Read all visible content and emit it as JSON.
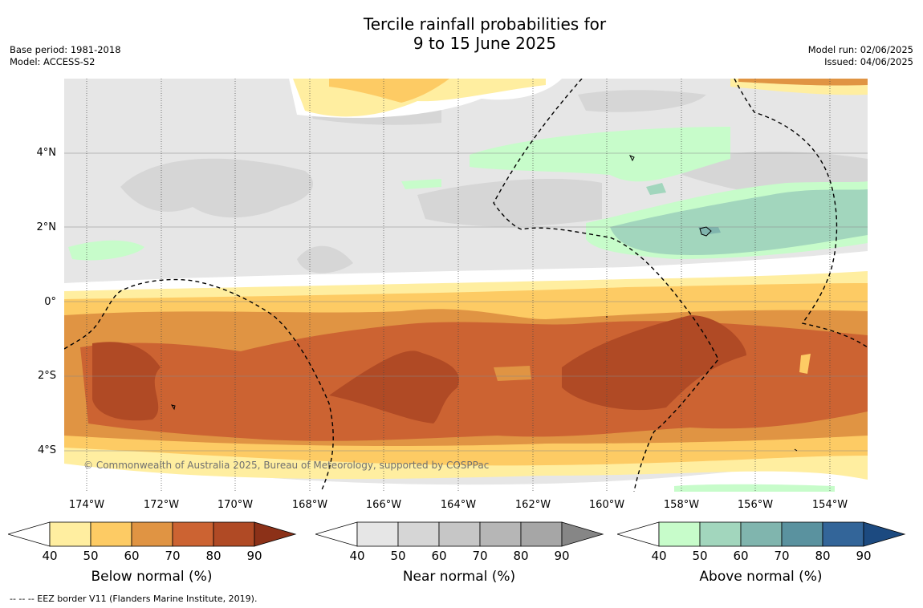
{
  "title": {
    "line1": "Tercile rainfall probabilities for",
    "line2": "9 to 15 June 2025"
  },
  "meta": {
    "base_period": "Base period: 1981-2018",
    "model": "Model: ACCESS-S2",
    "model_run": "Model run: 02/06/2025",
    "issued": "Issued: 04/06/2025"
  },
  "copyright": "© Commonwealth of Australia 2025, Bureau of Meteorology, supported by COSPPac",
  "axes": {
    "lat_labels": [
      "4°N",
      "2°N",
      "0°",
      "2°S",
      "4°S"
    ],
    "lon_labels": [
      "174°W",
      "172°W",
      "170°W",
      "168°W",
      "166°W",
      "164°W",
      "162°W",
      "160°W",
      "158°W",
      "156°W",
      "154°W"
    ]
  },
  "legends": [
    {
      "title": "Below normal (%)",
      "ticks": [
        "40",
        "50",
        "60",
        "70",
        "80",
        "90"
      ],
      "colors": [
        "#ffeea0",
        "#fdcb64",
        "#e09443",
        "#cc6332",
        "#b04a25",
        "#8c3118"
      ]
    },
    {
      "title": "Near normal (%)",
      "ticks": [
        "40",
        "50",
        "60",
        "70",
        "80",
        "90"
      ],
      "colors": [
        "#e6e6e6",
        "#d6d6d6",
        "#c6c6c6",
        "#b6b6b6",
        "#a6a6a6",
        "#868686"
      ]
    },
    {
      "title": "Above normal (%)",
      "ticks": [
        "40",
        "50",
        "60",
        "70",
        "80",
        "90"
      ],
      "colors": [
        "#c7fcca",
        "#a2d6bd",
        "#80b5ae",
        "#5a929f",
        "#336599",
        "#1c4a80"
      ]
    }
  ],
  "footnote": "--  --  -- EEZ border V11 (Flanders Marine Institute, 2019)."
}
